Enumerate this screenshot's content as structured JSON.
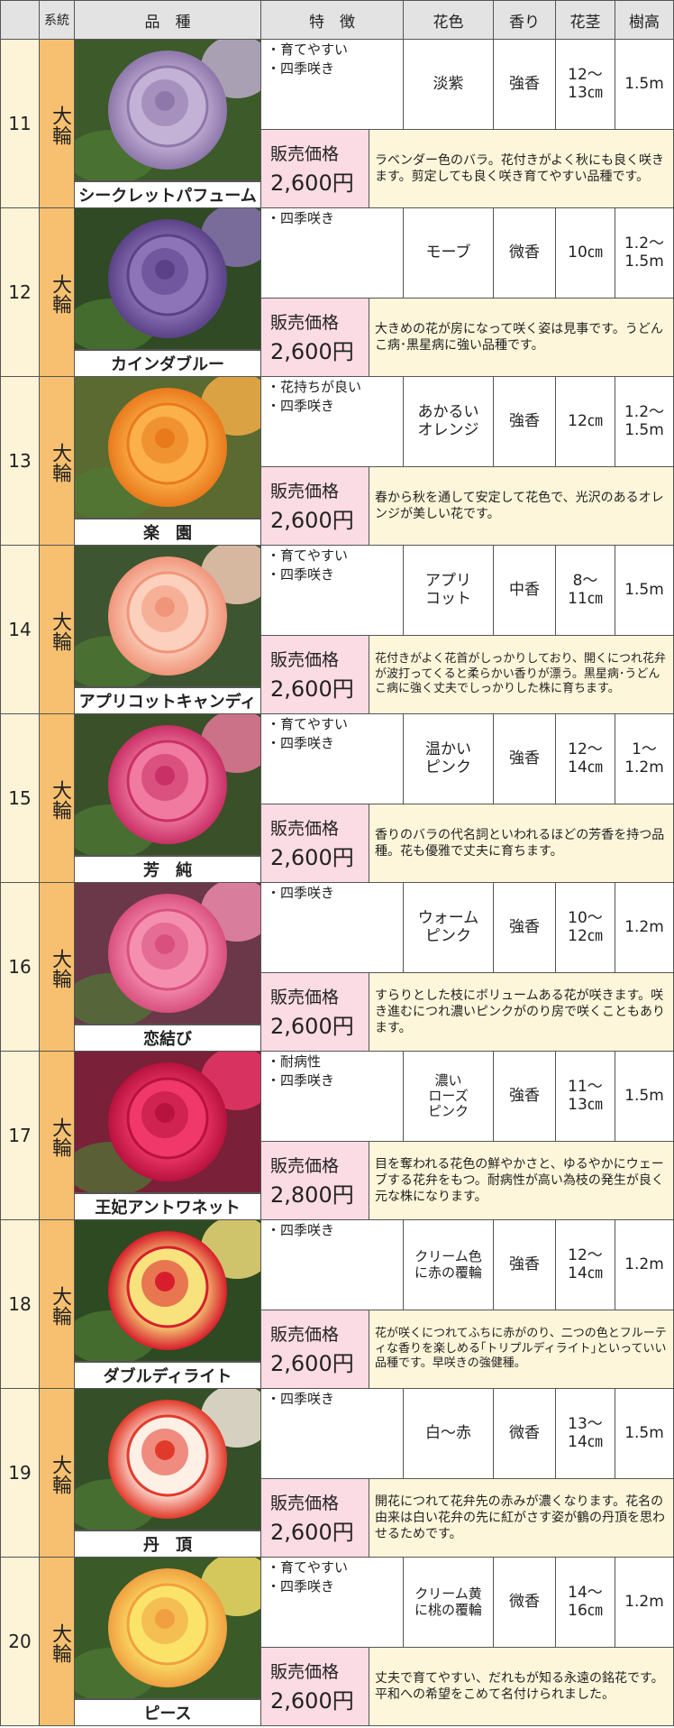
{
  "header": {
    "cells": [
      "系統",
      "品　種",
      "特　徴",
      "花色",
      "香り",
      "花茎",
      "樹高"
    ]
  },
  "rows": [
    {
      "number": "11",
      "type": "大輪",
      "name": "シークレットパフューム",
      "features": [
        "・育てやすい",
        "・四季咲き"
      ],
      "color": [
        "淡紫"
      ],
      "fragrance": "強香",
      "stem": [
        "12〜",
        "13㎝"
      ],
      "height": [
        "1.5m"
      ],
      "price_label": "販売価格",
      "price": "2,600円",
      "description": "ラベンダー色のバラ。花付きがよく秋にも良く咲きます。剪定しても良く咲き育てやすい品種です。"
    },
    {
      "number": "12",
      "type": "大輪",
      "name": "カインダブルー",
      "features": [
        "・四季咲き"
      ],
      "color": [
        "モーブ"
      ],
      "fragrance": "微香",
      "stem": [
        "10㎝"
      ],
      "height": [
        "1.2〜",
        "1.5m"
      ],
      "price_label": "販売価格",
      "price": "2,600円",
      "description": "大きめの花が房になって咲く姿は見事です。うどんこ病･黒星病に強い品種です。"
    },
    {
      "number": "13",
      "type": "大輪",
      "name": "楽　園",
      "features": [
        "・花持ちが良い",
        "・四季咲き"
      ],
      "color": [
        "あかるい",
        "オレンジ"
      ],
      "fragrance": "強香",
      "stem": [
        "12㎝"
      ],
      "height": [
        "1.2〜",
        "1.5m"
      ],
      "price_label": "販売価格",
      "price": "2,600円",
      "description": "春から秋を通して安定して花色で、光沢のあるオレンジが美しい花です。"
    },
    {
      "number": "14",
      "type": "大輪",
      "name": "アプリコットキャンディ",
      "features": [
        "・育てやすい",
        "・四季咲き"
      ],
      "color": [
        "アプリ",
        "コット"
      ],
      "fragrance": "中香",
      "stem": [
        "8〜",
        "11㎝"
      ],
      "height": [
        "1.5m"
      ],
      "price_label": "販売価格",
      "price": "2,600円",
      "description": "花付きがよく花首がしっかりしており、開くにつれ花弁が波打ってくると柔らかい香りが漂う。黒星病･うどんこ病に強く丈夫でしっかりした株に育ちます。"
    },
    {
      "number": "15",
      "type": "大輪",
      "name": "芳　純",
      "features": [
        "・育てやすい",
        "・四季咲き"
      ],
      "color": [
        "温かい",
        "ピンク"
      ],
      "fragrance": "強香",
      "stem": [
        "12〜",
        "14㎝"
      ],
      "height": [
        "1〜",
        "1.2m"
      ],
      "price_label": "販売価格",
      "price": "2,600円",
      "description": "香りのバラの代名詞といわれるほどの芳香を持つ品種。花も優雅で丈夫に育ちます。"
    },
    {
      "number": "16",
      "type": "大輪",
      "name": "恋結び",
      "features": [
        "・四季咲き"
      ],
      "color": [
        "ウォーム",
        "ピンク"
      ],
      "fragrance": "強香",
      "stem": [
        "10〜",
        "12㎝"
      ],
      "height": [
        "1.2m"
      ],
      "price_label": "販売価格",
      "price": "2,600円",
      "description": "すらりとした枝にボリュームある花が咲きます。咲き進むにつれ濃いピンクがのり房で咲くこともあります。"
    },
    {
      "number": "17",
      "type": "大輪",
      "name": "王妃アントワネット",
      "features": [
        "・耐病性",
        "・四季咲き"
      ],
      "color": [
        "濃い",
        "ローズ",
        "ピンク"
      ],
      "fragrance": "強香",
      "stem": [
        "11〜",
        "13㎝"
      ],
      "height": [
        "1.5m"
      ],
      "price_label": "販売価格",
      "price": "2,800円",
      "description": "目を奪われる花色の鮮やかさと、ゆるやかにウェーブする花弁をもつ。耐病性が高い為枝の発生が良く元な株になります。"
    },
    {
      "number": "18",
      "type": "大輪",
      "name": "ダブルディライト",
      "features": [
        "・四季咲き"
      ],
      "color": [
        "クリーム色",
        "に赤の覆輪"
      ],
      "fragrance": "強香",
      "stem": [
        "12〜",
        "14㎝"
      ],
      "height": [
        "1.2m"
      ],
      "price_label": "販売価格",
      "price": "2,600円",
      "description": "花が咲くにつれてふちに赤がのり、二つの色とフルーティな香りを楽しめる｢トリプルディライト｣といっていい品種です。早咲きの強健種。"
    },
    {
      "number": "19",
      "type": "大輪",
      "name": "丹　頂",
      "features": [
        "・四季咲き"
      ],
      "color": [
        "白〜赤"
      ],
      "fragrance": "微香",
      "stem": [
        "13〜",
        "14㎝"
      ],
      "height": [
        "1.5m"
      ],
      "price_label": "販売価格",
      "price": "2,600円",
      "description": "開花につれて花弁先の赤みが濃くなります。花名の由来は白い花弁の先に紅がさす姿が鶴の丹頂を思わせるためです。"
    },
    {
      "number": "20",
      "type": "大輪",
      "name": "ピース",
      "features": [
        "・育てやすい",
        "・四季咲き"
      ],
      "color": [
        "クリーム黄",
        "に桃の覆輪"
      ],
      "fragrance": "微香",
      "stem": [
        "14〜",
        "16㎝"
      ],
      "height": [
        "1.2m"
      ],
      "price_label": "販売価格",
      "price": "2,600円",
      "description": "丈夫で育てやすい、だれもが知る永遠の銘花です。平和への希望をこめて名付けられました。"
    }
  ]
}
